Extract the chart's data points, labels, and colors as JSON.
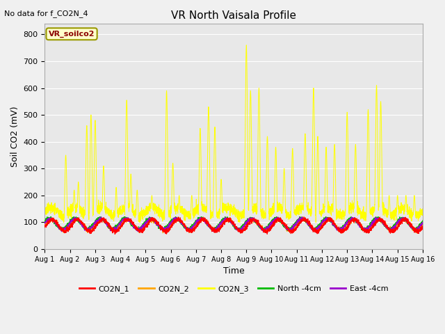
{
  "title": "VR North Vaisala Profile",
  "subtitle": "No data for f_CO2N_4",
  "ylabel": "Soil CO2 (mV)",
  "xlabel": "Time",
  "ylim": [
    0,
    840
  ],
  "xlim": [
    0,
    360
  ],
  "background_color": "#f0f0f0",
  "plot_bg_color": "#e8e8e8",
  "legend_box_label": "VR_soilco2",
  "legend_entries": [
    "CO2N_1",
    "CO2N_2",
    "CO2N_3",
    "North -4cm",
    "East -4cm"
  ],
  "legend_colors": [
    "#ff0000",
    "#ffa500",
    "#ffff00",
    "#00bb00",
    "#9900cc"
  ],
  "x_tick_labels": [
    "Aug 1",
    "Aug 2",
    "Aug 3",
    "Aug 4",
    "Aug 5",
    "Aug 6",
    "Aug 7",
    "Aug 8",
    "Aug 9",
    "Aug 10",
    "Aug 11",
    "Aug 12",
    "Aug 13",
    "Aug 14",
    "Aug 15",
    "Aug 16"
  ],
  "yticks": [
    0,
    100,
    200,
    300,
    400,
    500,
    600,
    700,
    800
  ],
  "n_points": 3600
}
